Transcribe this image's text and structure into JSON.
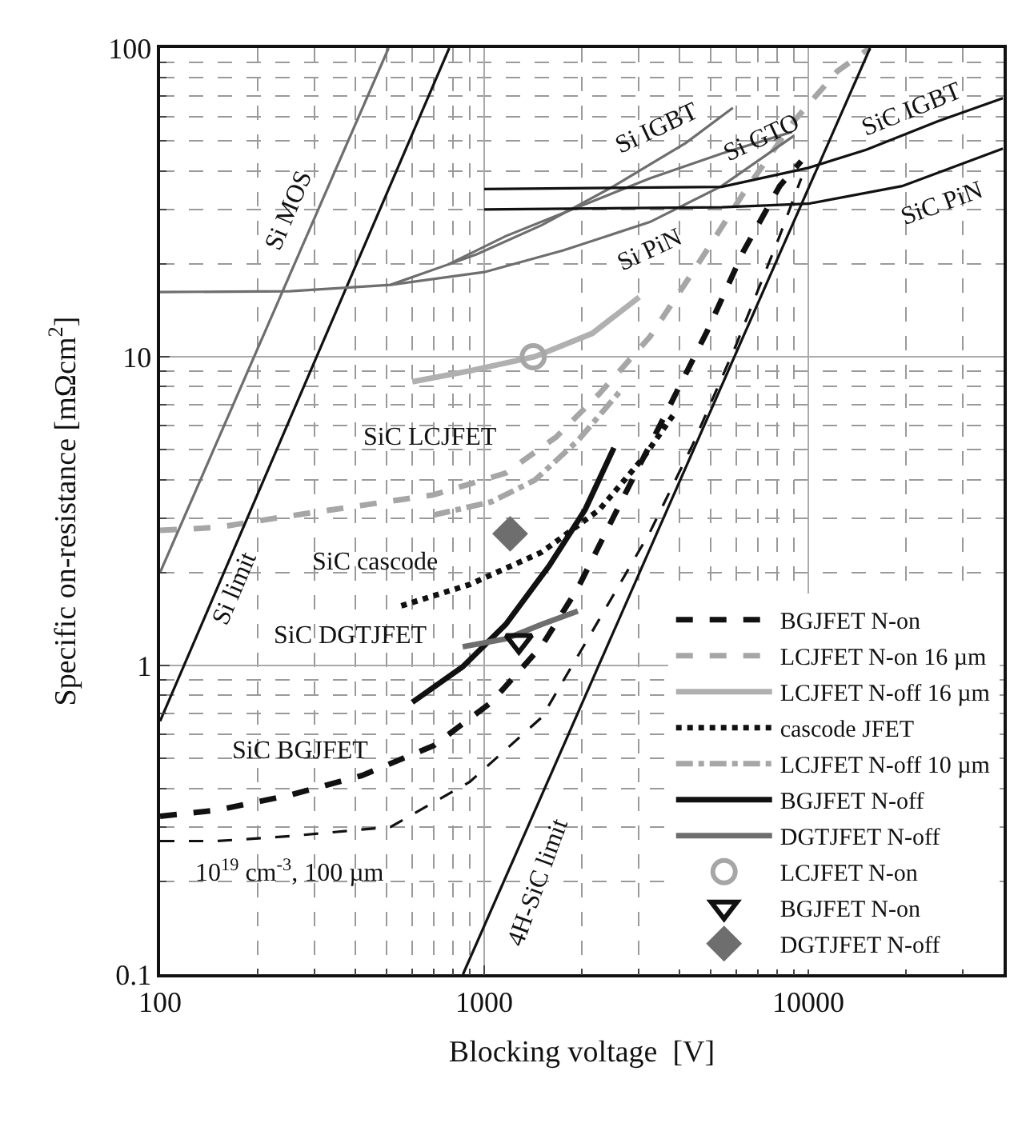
{
  "chart_data": {
    "type": "line",
    "xlabel": "Blocking voltage  [V]",
    "ylabel": "Specific on-resistance [mΩcm$^{2}$]",
    "log": "xy",
    "xlim": [
      100,
      40000
    ],
    "ylim": [
      0.1,
      100
    ],
    "xticks": [
      100,
      1000,
      10000
    ],
    "yticks": [
      0.1,
      1,
      10,
      100
    ],
    "grid": true,
    "legend": "bottom right",
    "marker": "none",
    "series": [
      {
        "name": "BGJFET N-on",
        "color": "#111111",
        "line_style": "dashed",
        "x": [
          100,
          150,
          251,
          419,
          698,
          1052,
          1506,
          1944,
          2644,
          3594,
          4890,
          6310,
          8150,
          9500
        ],
        "values": [
          0.325,
          0.34,
          0.38,
          0.44,
          0.55,
          0.76,
          1.16,
          1.78,
          3.39,
          6.4,
          12.2,
          22,
          35.7,
          43
        ]
      },
      {
        "name": "LCJFET N-on 16 µm",
        "color": "#a6a6a6",
        "line_style": "dashed",
        "x": [
          100,
          150,
          251,
          419,
          698,
          1166,
          1668,
          2268,
          3243,
          4400,
          6310,
          9030,
          12270,
          15450
        ],
        "values": [
          2.74,
          2.8,
          3.05,
          3.3,
          3.57,
          4.2,
          5.5,
          7.6,
          11.6,
          18.8,
          33.9,
          58,
          84,
          100
        ]
      },
      {
        "name": "LCJFET N-off 16 µm",
        "color": "#b0b0b0",
        "line_style": "solid",
        "x": [
          600,
          903,
          1431,
          2154,
          3006
        ],
        "values": [
          8.3,
          9.0,
          10,
          11.9,
          15.6
        ]
      },
      {
        "name": "cascode JFET",
        "color": "#111111",
        "line_style": "dotted",
        "x": [
          555,
          903,
          1506,
          2268,
          3080,
          3880
        ],
        "values": [
          1.56,
          1.83,
          2.33,
          3.2,
          4.68,
          6.6
        ]
      },
      {
        "name": "LCJFET N-off 10 µm",
        "color": "#a6a6a6",
        "line_style": "dashdot",
        "x": [
          698,
          1052,
          1431,
          1944,
          2644
        ],
        "values": [
          3.07,
          3.39,
          3.98,
          5.35,
          7.8
        ]
      },
      {
        "name": "BGJFET N-off",
        "color": "#111111",
        "line_style": "solid",
        "x": [
          600,
          858,
          1166,
          1585,
          2048,
          2512
        ],
        "values": [
          0.76,
          0.99,
          1.36,
          2.1,
          3.2,
          5.07
        ]
      },
      {
        "name": "DGTJFET N-off",
        "color": "#6e6e6e",
        "line_style": "solid",
        "x": [
          858,
          1166,
          1506,
          1944
        ],
        "values": [
          1.15,
          1.22,
          1.36,
          1.5
        ]
      },
      {
        "name": "LCJFET N-on",
        "type": "scatter",
        "marker": "circle",
        "color": "#a6a6a6",
        "x": [
          1416
        ],
        "values": [
          10
        ]
      },
      {
        "name": "BGJFET N-on",
        "type": "scatter",
        "marker": "triangle",
        "color": "#111111",
        "x": [
          1279
        ],
        "values": [
          1.2
        ]
      },
      {
        "name": "DGTJFET N-off",
        "type": "scatter",
        "marker": "diamond",
        "color": "#6e6e6e",
        "x": [
          1202
        ],
        "values": [
          2.67
        ]
      },
      {
        "color": "#6e6e6e",
        "line_style": "solid",
        "x": [
          100,
          507
        ],
        "values": [
          2.0,
          100
        ]
      },
      {
        "color": "#111111",
        "line_style": "solid",
        "x": [
          100,
          780
        ],
        "values": [
          0.66,
          100
        ]
      },
      {
        "color": "#111111",
        "line_style": "solid",
        "x": [
          860,
          15500
        ],
        "values": [
          0.1,
          100
        ]
      },
      {
        "color": "#111111",
        "line_style": "dashed",
        "x": [
          100,
          150,
          251,
          514,
          903,
          1506,
          2154,
          3243,
          4400,
          6000,
          8150,
          9500
        ],
        "values": [
          0.27,
          0.27,
          0.28,
          0.3,
          0.42,
          0.68,
          1.29,
          2.7,
          5.2,
          11,
          24.6,
          37.8
        ]
      },
      {
        "color": "#6e6e6e",
        "line_style": "solid",
        "x": [
          100,
          251,
          514,
          1000,
          1754,
          3243,
          5400,
          9030
        ],
        "values": [
          16.2,
          16.3,
          17.1,
          18.8,
          22.1,
          27.3,
          35.7,
          52
        ]
      },
      {
        "color": "#6e6e6e",
        "line_style": "solid",
        "x": [
          514,
          774,
          1166,
          1944,
          3243,
          5400,
          8900
        ],
        "values": [
          17.1,
          19.9,
          24.6,
          30.5,
          37.8,
          45.5,
          53.5
        ]
      },
      {
        "color": "#6e6e6e",
        "line_style": "solid",
        "x": [
          774,
          950,
          1506,
          2512,
          4190,
          5850
        ],
        "values": [
          19.9,
          21.5,
          26.7,
          35.7,
          49.3,
          64
        ]
      },
      {
        "color": "#111111",
        "line_style": "solid",
        "x": [
          1000,
          5400,
          10000,
          15070,
          25120,
          39800
        ],
        "values": [
          34.9,
          35.5,
          40.9,
          46.8,
          57.9,
          68.8
        ]
      },
      {
        "color": "#111111",
        "line_style": "solid",
        "x": [
          1000,
          5400,
          10000,
          19450,
          39800
        ],
        "values": [
          30,
          30.5,
          31.3,
          35.7,
          47.2
        ]
      }
    ],
    "annotations": [
      "Si MOS",
      "Si limit",
      "Si IGBT",
      "Si GTO",
      "SiC IGBT",
      "SiC PiN",
      "Si PiN",
      "SiC LCJFET",
      "SiC cascode",
      "SiC DGTJFET",
      "SiC BGJFET",
      "10$^{19}$ cm$^{-3}$, 100 µm",
      "4H-SiC limit"
    ]
  }
}
